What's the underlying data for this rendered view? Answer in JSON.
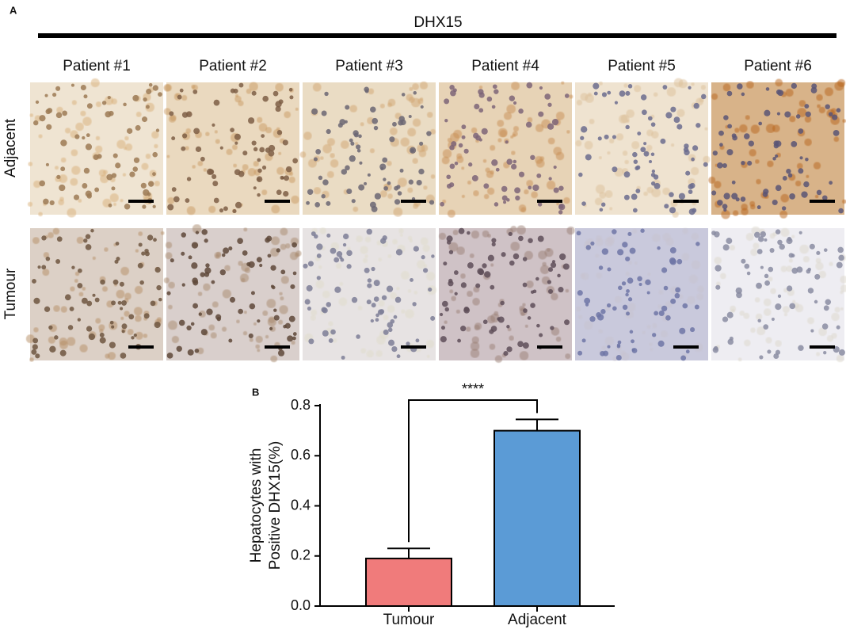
{
  "panel_a": {
    "label": "A",
    "title": "DHX15",
    "columns": [
      "Patient #1",
      "Patient #2",
      "Patient #3",
      "Patient #4",
      "Patient #5",
      "Patient #6"
    ],
    "rows": [
      "Adjacent",
      "Tumour"
    ]
  },
  "chart_data": {
    "type": "bar",
    "panel_label": "B",
    "y_label": [
      "Hepatocytes with",
      "Positive DHX15(%)"
    ],
    "categories": [
      "Tumour",
      "Adjacent"
    ],
    "values": [
      0.19,
      0.7
    ],
    "errors": [
      0.04,
      0.045
    ],
    "colors": [
      "#f07b7b",
      "#5b9bd6"
    ],
    "ylim": [
      0,
      0.8
    ],
    "yticks": [
      {
        "value": 0,
        "label": "0.0"
      },
      0.2,
      0.4,
      0.6,
      0.8
    ],
    "annotation": "****"
  }
}
